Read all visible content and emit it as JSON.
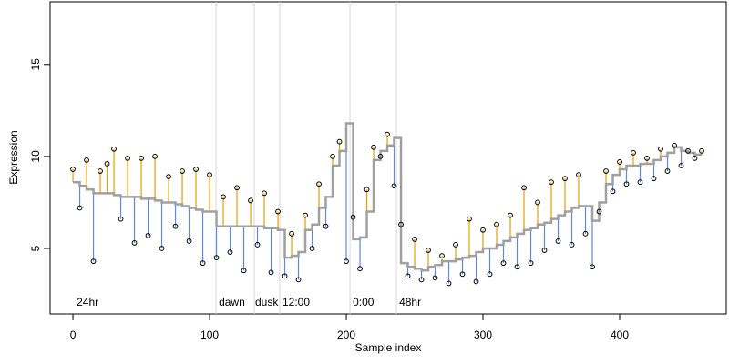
{
  "chart_data": {
    "type": "scatter",
    "x_label": "Sample index",
    "y_label": "Expression",
    "xlim": [
      -16.7,
      478
    ],
    "ylim": [
      1.44,
      18.4
    ],
    "xticks": [
      0,
      100,
      200,
      300,
      400
    ],
    "yticks": [
      5,
      10,
      15
    ],
    "point_color": "#000000",
    "above_color": "#e69f00",
    "below_color": "#5b8bd9",
    "fit_color": "#a0a0a0",
    "marker_color": "#d9d9d9",
    "annotation_color": "#aaaaaa",
    "vlines": [
      104.7,
      132.7,
      151.3,
      202.7,
      236.7
    ],
    "annotations": [
      {
        "x": 2.7,
        "y": 2.03,
        "text": "24hr"
      },
      {
        "x": 106.7,
        "y": 2.03,
        "text": "dawn"
      },
      {
        "x": 133.3,
        "y": 2.03,
        "text": "dusk"
      },
      {
        "x": 153.3,
        "y": 2.03,
        "text": "12:00"
      },
      {
        "x": 204.7,
        "y": 2.03,
        "text": "0:00"
      },
      {
        "x": 238.7,
        "y": 2.03,
        "text": "48hr"
      }
    ],
    "x": [
      0,
      5,
      10,
      15,
      20,
      25,
      30,
      35,
      40,
      45,
      50,
      55,
      60,
      65,
      70,
      75,
      80,
      85,
      90,
      95,
      100,
      105,
      110,
      115,
      120,
      125,
      130,
      135,
      140,
      145,
      150,
      155,
      160,
      165,
      170,
      175,
      180,
      185,
      190,
      195,
      200,
      205,
      210,
      215,
      220,
      225,
      230,
      235,
      240,
      245,
      250,
      255,
      260,
      265,
      270,
      275,
      280,
      285,
      290,
      295,
      300,
      305,
      310,
      315,
      320,
      325,
      330,
      335,
      340,
      345,
      350,
      355,
      360,
      365,
      370,
      375,
      380,
      385,
      390,
      395,
      400,
      405,
      410,
      415,
      420,
      425,
      430,
      435,
      440,
      445,
      450,
      455,
      460
    ],
    "values": [
      9.3,
      7.2,
      9.8,
      4.3,
      9.2,
      9.6,
      10.4,
      6.6,
      9.9,
      5.3,
      9.9,
      5.7,
      10.0,
      5.0,
      8.9,
      6.2,
      9.2,
      5.4,
      9.3,
      4.2,
      9.0,
      4.5,
      7.8,
      4.8,
      8.3,
      3.8,
      7.6,
      5.2,
      8.0,
      3.7,
      7.0,
      3.5,
      5.8,
      3.3,
      6.8,
      5.0,
      8.5,
      6.2,
      10.0,
      10.8,
      4.3,
      6.7,
      3.9,
      8.2,
      10.5,
      10.0,
      11.2,
      8.4,
      6.3,
      3.5,
      5.5,
      3.3,
      4.9,
      3.4,
      4.6,
      3.1,
      5.2,
      3.6,
      6.6,
      3.2,
      6.0,
      3.6,
      6.3,
      4.2,
      6.8,
      4.0,
      8.3,
      4.2,
      7.5,
      4.9,
      8.6,
      5.4,
      8.8,
      5.2,
      9.0,
      5.8,
      4.0,
      7.0,
      9.2,
      8.1,
      9.7,
      8.5,
      10.2,
      8.6,
      9.9,
      8.8,
      10.4,
      9.2,
      10.6,
      9.5,
      10.3,
      9.9,
      10.3
    ],
    "fit": [
      8.6,
      8.4,
      8.2,
      8.0,
      8.0,
      8.0,
      7.9,
      7.8,
      7.8,
      7.8,
      7.7,
      7.7,
      7.6,
      7.5,
      7.5,
      7.4,
      7.3,
      7.2,
      7.1,
      7.0,
      7.0,
      6.2,
      6.2,
      6.2,
      6.2,
      6.2,
      6.2,
      6.2,
      6.1,
      6.1,
      6.0,
      4.5,
      4.6,
      4.8,
      6.0,
      6.3,
      7.2,
      7.8,
      9.5,
      10.3,
      11.8,
      5.5,
      5.6,
      7.0,
      9.8,
      10.3,
      10.6,
      11.0,
      4.2,
      4.0,
      3.9,
      3.8,
      4.0,
      4.1,
      4.3,
      4.3,
      4.4,
      4.5,
      4.6,
      4.8,
      5.0,
      5.0,
      5.2,
      5.4,
      5.6,
      5.8,
      6.0,
      6.1,
      6.3,
      6.4,
      6.6,
      6.8,
      7.0,
      7.2,
      7.3,
      7.3,
      6.5,
      7.5,
      8.5,
      9.0,
      9.3,
      9.5,
      9.5,
      9.6,
      9.6,
      9.8,
      10.0,
      10.2,
      10.5,
      10.3,
      10.2,
      10.1,
      10.1
    ]
  }
}
